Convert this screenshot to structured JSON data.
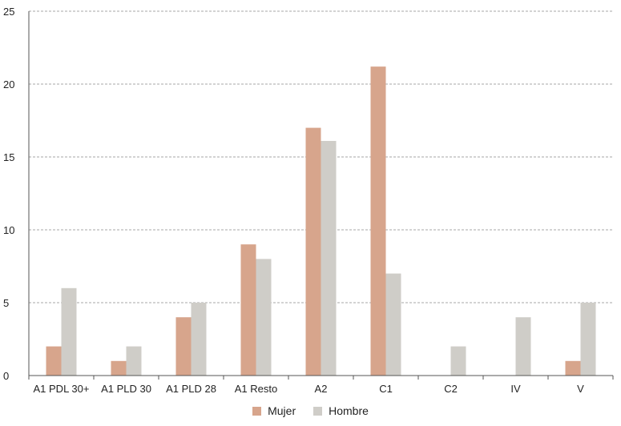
{
  "chart_data": {
    "type": "bar",
    "categories": [
      "A1 PDL 30+",
      "A1 PLD 30",
      "A1 PLD 28",
      "A1 Resto",
      "A2",
      "C1",
      "C2",
      "IV",
      "V"
    ],
    "series": [
      {
        "name": "Mujer",
        "color": "#d7a58c",
        "values": [
          2,
          1,
          4,
          9,
          17,
          21.2,
          0,
          0,
          1
        ]
      },
      {
        "name": "Hombre",
        "color": "#cfcdc8",
        "values": [
          6,
          2,
          5,
          8,
          16.1,
          7,
          2,
          4,
          5
        ]
      }
    ],
    "yticks": [
      "0",
      "5",
      "10",
      "15",
      "20",
      "25"
    ],
    "ylim": [
      0,
      25
    ],
    "grid": true,
    "legend_position": "bottom-center"
  }
}
